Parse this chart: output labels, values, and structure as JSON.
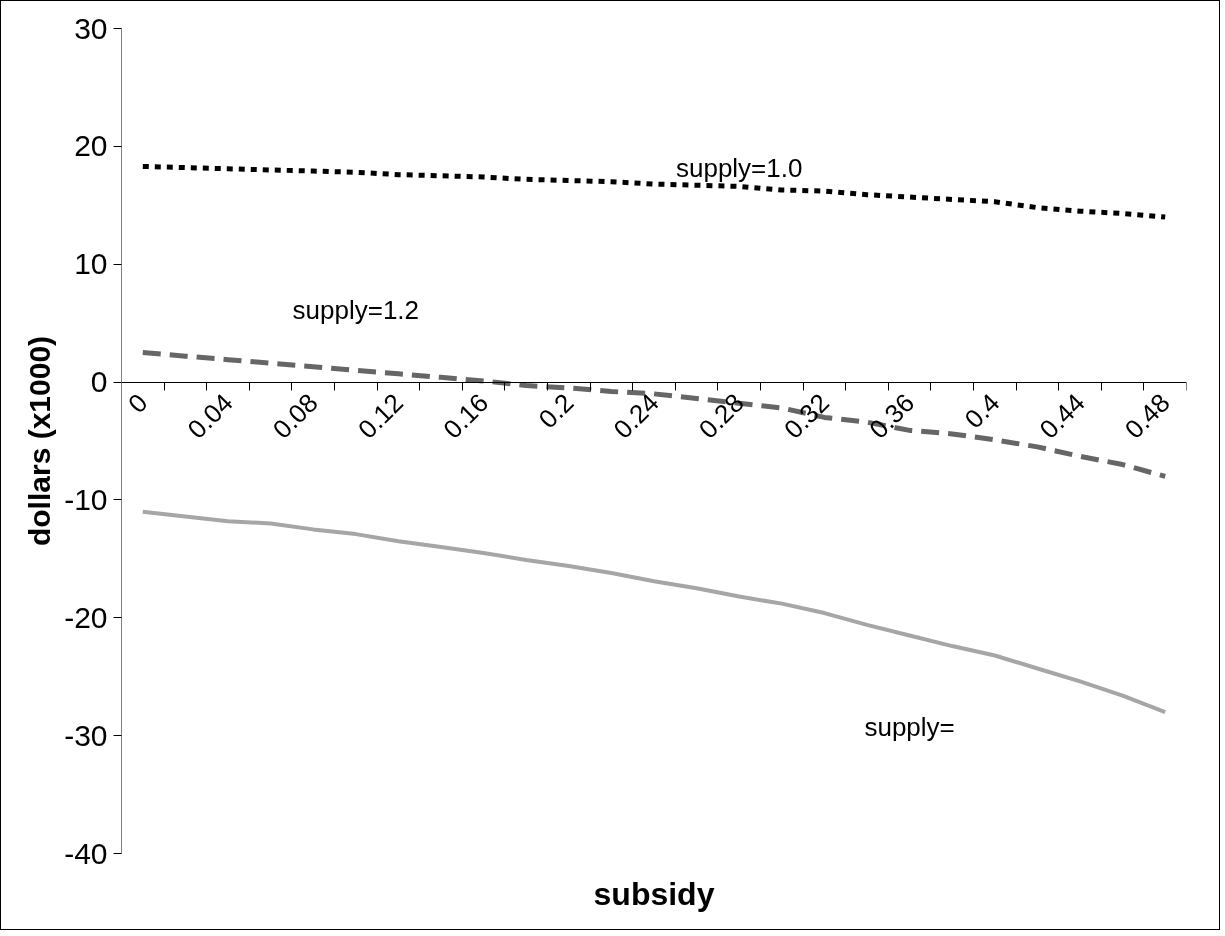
{
  "chart_data": {
    "type": "line",
    "xlabel": "subsidy",
    "ylabel": "dollars (x1000)",
    "categories": [
      "0",
      null,
      "0.04",
      null,
      "0.08",
      null,
      "0.12",
      null,
      "0.16",
      null,
      "0.2",
      null,
      "0.24",
      null,
      "0.28",
      null,
      "0.32",
      null,
      "0.36",
      null,
      "0.4",
      null,
      "0.44",
      null,
      "0.48"
    ],
    "series": [
      {
        "name": "supply=1.0",
        "color": "#000000",
        "line_style": "dotted",
        "values": [
          18.3,
          18.2,
          18.1,
          18.0,
          17.9,
          17.8,
          17.6,
          17.5,
          17.4,
          17.2,
          17.1,
          17.0,
          16.8,
          16.7,
          16.6,
          16.3,
          16.2,
          15.9,
          15.7,
          15.5,
          15.3,
          14.8,
          14.5,
          14.3,
          14.0
        ]
      },
      {
        "name": "supply=1.2",
        "color": "#666666",
        "line_style": "dashed",
        "values": [
          2.5,
          2.2,
          1.9,
          1.6,
          1.3,
          1.0,
          0.7,
          0.4,
          0.1,
          -0.3,
          -0.5,
          -0.8,
          -1.0,
          -1.4,
          -1.8,
          -2.2,
          -3.0,
          -3.4,
          -4.1,
          -4.4,
          -4.9,
          -5.5,
          -6.3,
          -7.0,
          -8.0
        ]
      },
      {
        "name": "supply=",
        "color": "#a6a6a6",
        "line_style": "solid",
        "values": [
          -11.0,
          -11.4,
          -11.8,
          -12.0,
          -12.5,
          -12.9,
          -13.5,
          -14.0,
          -14.5,
          -15.1,
          -15.6,
          -16.2,
          -16.9,
          -17.5,
          -18.2,
          -18.8,
          -19.6,
          -20.6,
          -21.5,
          -22.4,
          -23.2,
          -24.3,
          -25.4,
          -26.6,
          -28.0
        ]
      }
    ],
    "ylim": [
      -40,
      30
    ],
    "yticks": [
      -40,
      -30,
      -20,
      -10,
      0,
      10,
      20,
      30
    ],
    "grid": false
  }
}
